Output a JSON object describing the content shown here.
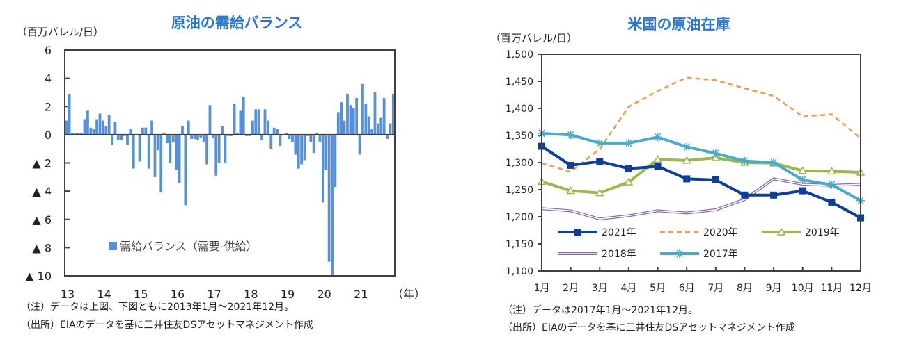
{
  "chart_data": [
    {
      "type": "bar",
      "title": "原油の需給バランス",
      "ylabel": "（百万バレル/日）",
      "xlabel": "（年）",
      "ylim": [
        -10,
        6
      ],
      "yticks": [
        6,
        4,
        2,
        0,
        -2,
        -4,
        -6,
        -8,
        -10
      ],
      "ytick_labels": [
        "6",
        "4",
        "2",
        "0",
        "▲ 2",
        "▲ 4",
        "▲ 6",
        "▲ 8",
        "▲ 10"
      ],
      "xtick_labels": [
        "13",
        "14",
        "15",
        "16",
        "17",
        "18",
        "19",
        "20",
        "21"
      ],
      "legend": "bottom-left",
      "series": [
        {
          "name": "需給バランス（需要-供給）",
          "color": "#5590d8",
          "frequency": "monthly 2013-01 to 2021-12",
          "values": [
            1.0,
            2.9,
            0.1,
            0.1,
            0.1,
            0.1,
            1.1,
            1.7,
            0.5,
            0.4,
            1.1,
            1.5,
            1.0,
            0.6,
            1.4,
            -0.7,
            0.9,
            -0.4,
            -0.4,
            -0.1,
            -0.7,
            0.4,
            -2.4,
            0.0,
            -1.9,
            0.5,
            0.5,
            -2.4,
            1.0,
            -3.0,
            -1.1,
            -4.1,
            0.1,
            -0.6,
            -2.0,
            -0.5,
            -2.5,
            -3.4,
            0.6,
            -5.0,
            1.0,
            -0.3,
            -0.3,
            -0.4,
            -0.2,
            -0.5,
            -2.1,
            2.1,
            -0.2,
            -2.9,
            -2.0,
            0.6,
            -2.0,
            -0.1,
            -0.1,
            2.2,
            0.1,
            1.7,
            2.7,
            -0.1,
            -0.1,
            1.0,
            1.8,
            1.8,
            -0.4,
            1.8,
            1.0,
            -1.0,
            0.5,
            0.4,
            -0.8,
            0.0,
            0.1,
            -0.3,
            -0.5,
            -1.4,
            -2.4,
            -2.1,
            -1.8,
            -0.1,
            -0.5,
            -1.3,
            0.1,
            -0.5,
            -4.8,
            -2.5,
            -9.0,
            -10.0,
            -3.7,
            1.6,
            2.3,
            1.0,
            2.9,
            2.1,
            1.9,
            2.6,
            -1.4,
            3.6,
            2.2,
            1.3,
            0.4,
            3.0,
            0.8,
            1.2,
            2.6,
            -0.3,
            0.8,
            2.9
          ]
        }
      ],
      "grid": false
    },
    {
      "type": "line",
      "title": "米国の原油在庫",
      "ylabel": "（百万バレル/日）",
      "ylim": [
        1100,
        1500
      ],
      "ytick_labels": [
        "1,500",
        "1,450",
        "1,400",
        "1,350",
        "1,300",
        "1,250",
        "1,200",
        "1,150",
        "1,100"
      ],
      "yticks": [
        1500,
        1450,
        1400,
        1350,
        1300,
        1250,
        1200,
        1150,
        1100
      ],
      "categories": [
        "1月",
        "2月",
        "3月",
        "4月",
        "5月",
        "6月",
        "7月",
        "8月",
        "9月",
        "10月",
        "11月",
        "12月"
      ],
      "legend": "bottom-inside",
      "grid": false,
      "series": [
        {
          "name": "2021年",
          "color": "#0e3f96",
          "style": "solid-square",
          "values": [
            1330,
            1295,
            1302,
            1289,
            1293,
            1270,
            1268,
            1240,
            1240,
            1248,
            1227,
            1198
          ]
        },
        {
          "name": "2020年",
          "color": "#f39a4a",
          "style": "dashed",
          "values": [
            1299,
            1283,
            1325,
            1403,
            1432,
            1457,
            1452,
            1437,
            1423,
            1385,
            1389,
            1345
          ]
        },
        {
          "name": "2019年",
          "color": "#98b94f",
          "style": "solid-triangle",
          "values": [
            1265,
            1248,
            1244,
            1264,
            1306,
            1304,
            1309,
            1300,
            1299,
            1285,
            1284,
            1282
          ]
        },
        {
          "name": "2018年",
          "color": "#8a6bb0",
          "style": "double",
          "values": [
            1215,
            1211,
            1196,
            1202,
            1211,
            1207,
            1213,
            1232,
            1270,
            1260,
            1258,
            1260
          ]
        },
        {
          "name": "2017年",
          "color": "#4aaac8",
          "style": "solid-asterisk",
          "values": [
            1354,
            1351,
            1336,
            1336,
            1347,
            1329,
            1317,
            1303,
            1300,
            1268,
            1259,
            1230
          ]
        }
      ]
    }
  ],
  "notes": {
    "left_note": "（注）データは上図、下図ともに2013年1月～2021年12月。",
    "left_source": "（出所）EIAのデータを基に三井住友DSアセットマネジメント作成",
    "right_note": "（注）データは2017年1月～2021年12月。",
    "right_source": "（出所）EIAのデータを基に三井住友DSアセットマネジメント作成"
  }
}
